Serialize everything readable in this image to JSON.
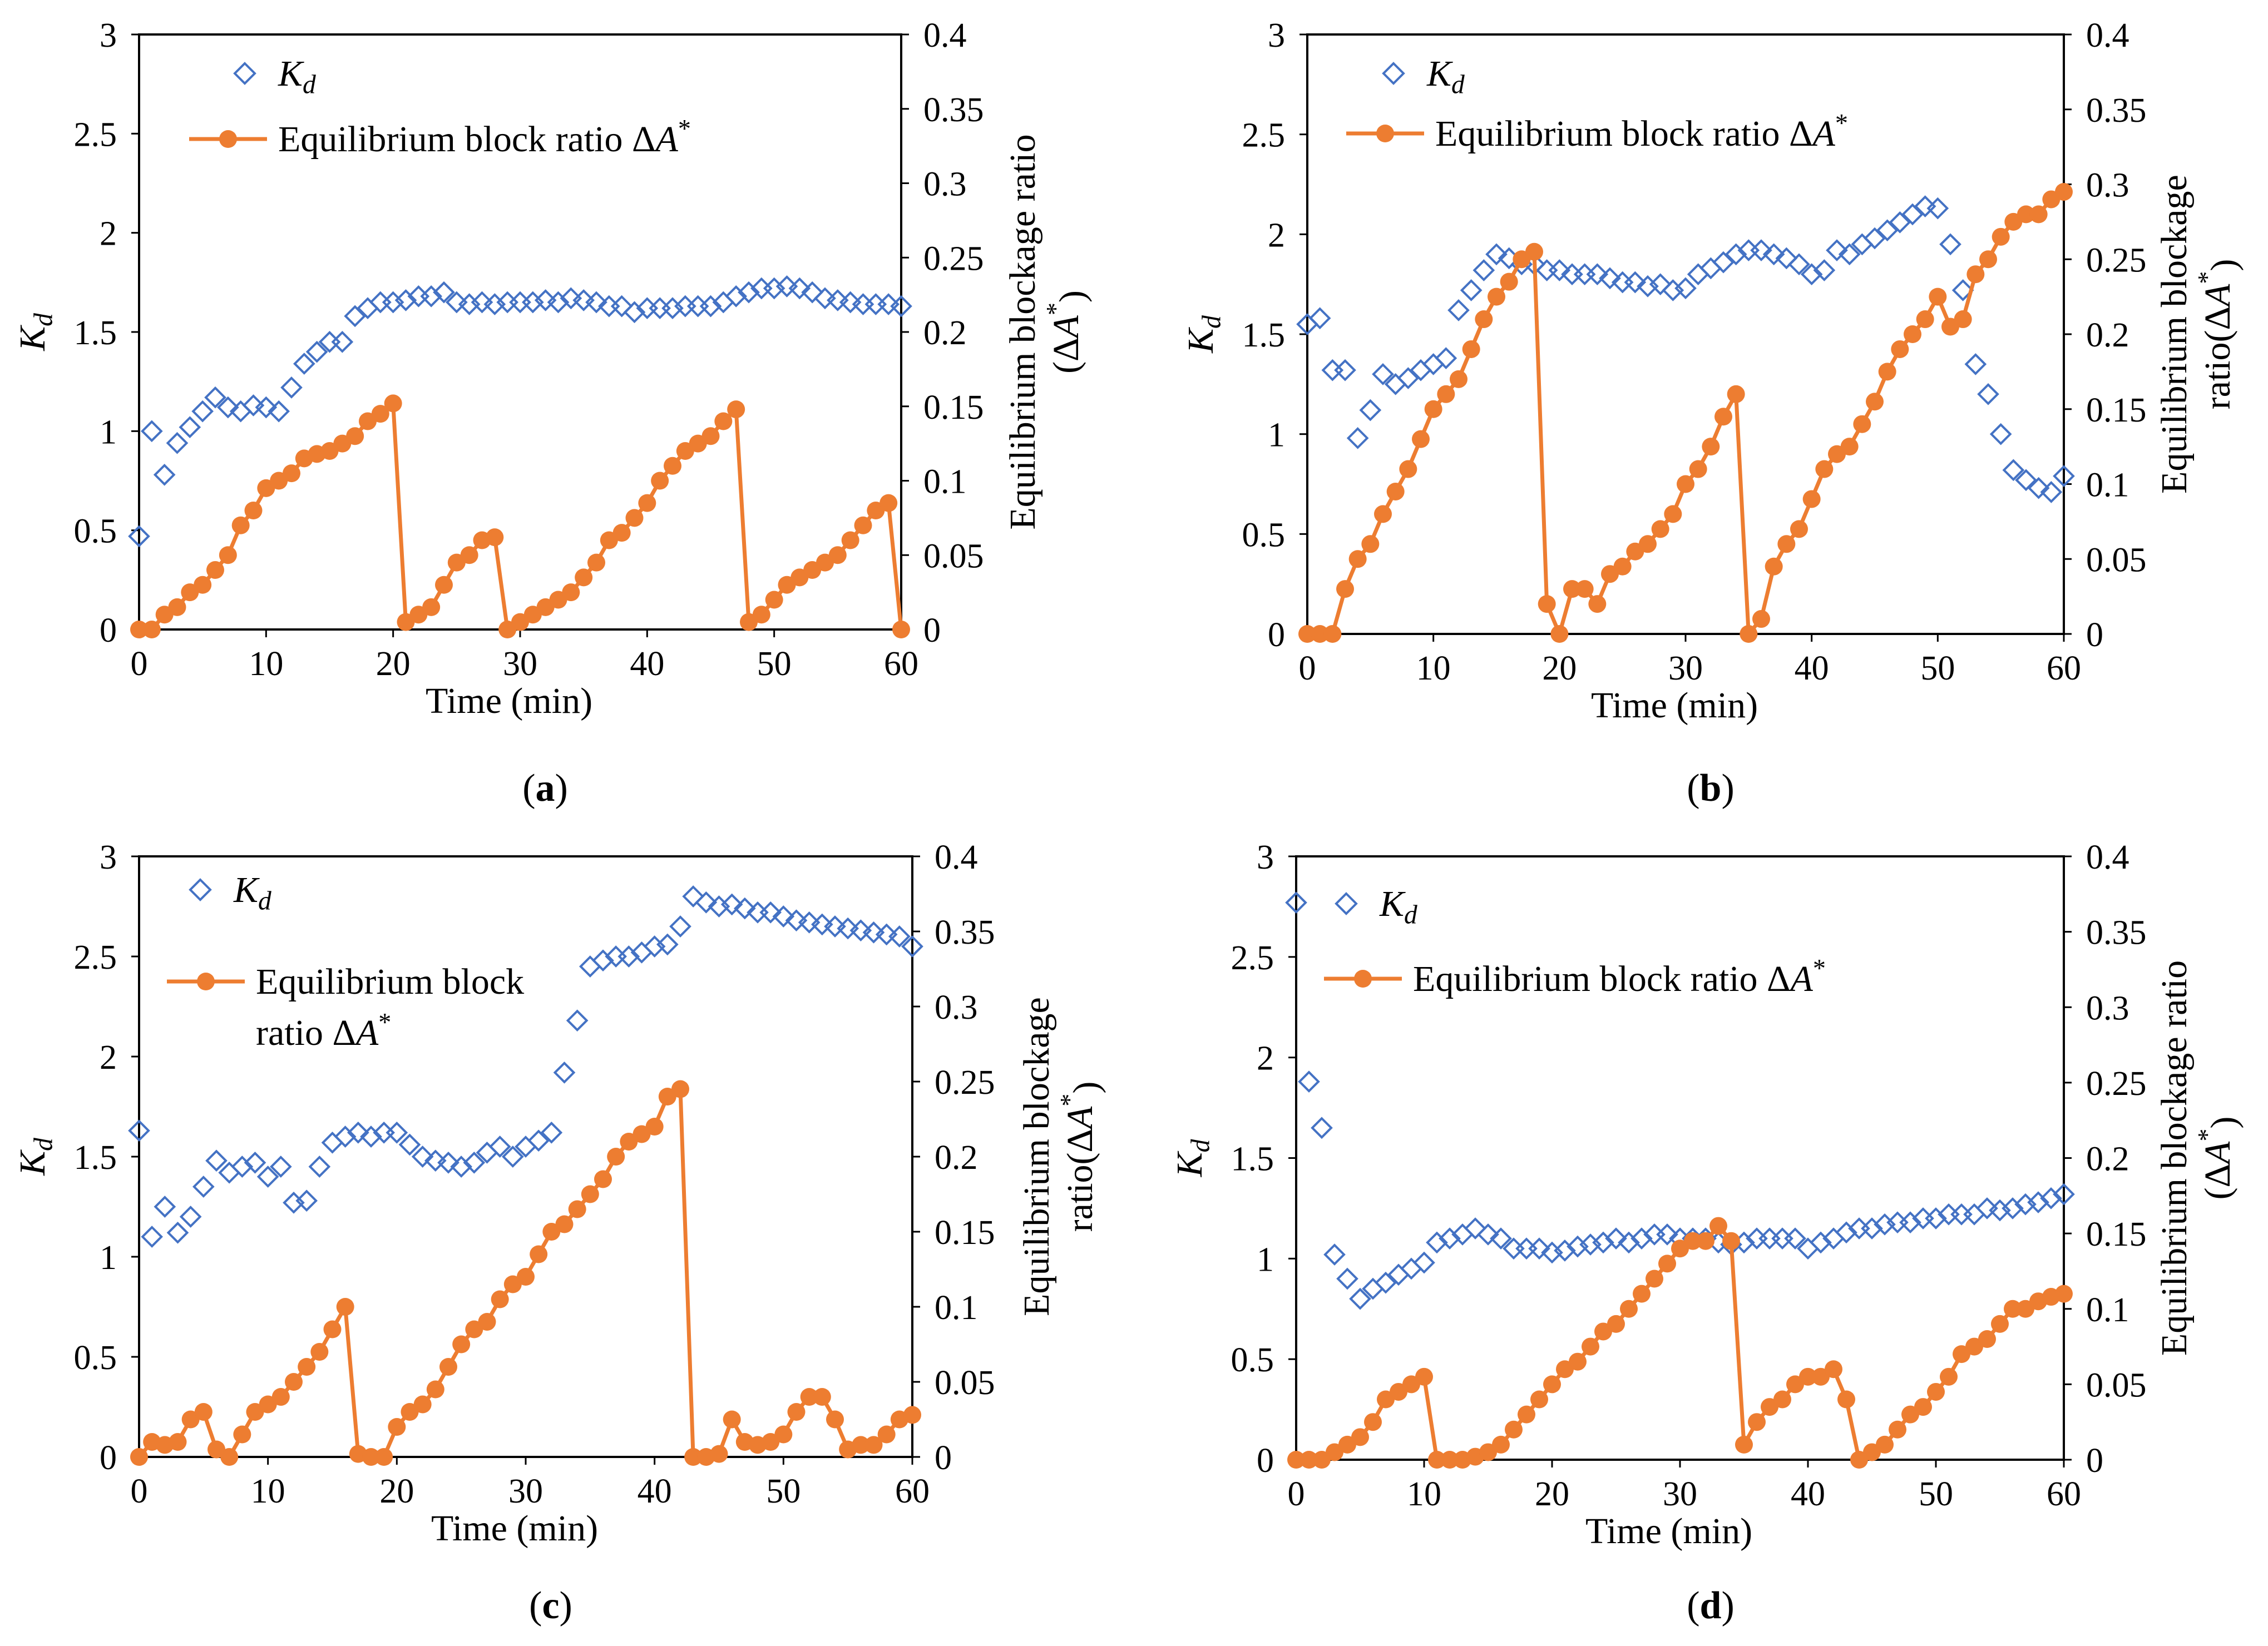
{
  "figure": {
    "colors": {
      "kd": "#4472C4",
      "block": "#ED7D31",
      "axis": "#000000"
    }
  },
  "chart_data": [
    {
      "panel": "a",
      "type": "scatter+line",
      "caption_letter": "a",
      "xlabel": "Time (min)",
      "ylabel_left": "Kd",
      "ylabel_right": [
        "Equilibrium blockage ratio",
        "(ΔA*)"
      ],
      "legend": {
        "kd": "Kd",
        "block": [
          "Equilibrium block ratio ΔA*"
        ]
      },
      "xlim": [
        0,
        60
      ],
      "x_ticks": [
        0,
        10,
        20,
        30,
        40,
        50,
        60
      ],
      "ylim_left": [
        0,
        3
      ],
      "y_left_ticks": [
        0,
        0.5,
        1,
        1.5,
        2,
        2.5,
        3
      ],
      "ylim_right": [
        0,
        0.4
      ],
      "y_right_ticks": [
        0,
        0.05,
        0.1,
        0.15,
        0.2,
        0.25,
        0.3,
        0.35,
        0.4
      ],
      "kd": [
        0.47,
        1.0,
        0.78,
        0.94,
        1.02,
        1.1,
        1.17,
        1.12,
        1.1,
        1.13,
        1.12,
        1.1,
        1.22,
        1.34,
        1.4,
        1.45,
        1.45,
        1.58,
        1.62,
        1.65,
        1.65,
        1.66,
        1.68,
        1.68,
        1.7,
        1.65,
        1.64,
        1.65,
        1.64,
        1.65,
        1.65,
        1.65,
        1.66,
        1.65,
        1.67,
        1.66,
        1.65,
        1.63,
        1.63,
        1.6,
        1.62,
        1.62,
        1.62,
        1.63,
        1.63,
        1.63,
        1.65,
        1.68,
        1.7,
        1.72,
        1.72,
        1.73,
        1.72,
        1.7,
        1.67,
        1.66,
        1.65,
        1.64,
        1.64,
        1.64,
        1.63
      ],
      "block": [
        0,
        0,
        0.01,
        0.015,
        0.025,
        0.03,
        0.04,
        0.05,
        0.07,
        0.08,
        0.095,
        0.1,
        0.105,
        0.115,
        0.118,
        0.12,
        0.125,
        0.13,
        0.14,
        0.145,
        0.152,
        0.005,
        0.01,
        0.015,
        0.03,
        0.045,
        0.05,
        0.06,
        0.062,
        0,
        0.005,
        0.01,
        0.015,
        0.02,
        0.025,
        0.035,
        0.045,
        0.06,
        0.065,
        0.075,
        0.085,
        0.1,
        0.11,
        0.12,
        0.125,
        0.13,
        0.14,
        0.148,
        0.005,
        0.01,
        0.02,
        0.03,
        0.035,
        0.04,
        0.045,
        0.05,
        0.06,
        0.07,
        0.08,
        0.085,
        0
      ]
    },
    {
      "panel": "b",
      "type": "scatter+line",
      "caption_letter": "b",
      "xlabel": "Time (min)",
      "ylabel_left": "Kd",
      "ylabel_right": [
        "Equilibrium blockage",
        "ratio(ΔA*)"
      ],
      "legend": {
        "kd": "Kd",
        "block": [
          "Equilibrium block ratio ΔA*"
        ]
      },
      "xlim": [
        0,
        60
      ],
      "x_ticks": [
        0,
        10,
        20,
        30,
        40,
        50,
        60
      ],
      "ylim_left": [
        0,
        3
      ],
      "y_left_ticks": [
        0,
        0.5,
        1,
        1.5,
        2,
        2.5,
        3
      ],
      "ylim_right": [
        0,
        0.4
      ],
      "y_right_ticks": [
        0,
        0.05,
        0.1,
        0.15,
        0.2,
        0.25,
        0.3,
        0.35,
        0.4
      ],
      "kd": [
        1.55,
        1.58,
        1.32,
        1.32,
        0.98,
        1.12,
        1.3,
        1.25,
        1.28,
        1.32,
        1.35,
        1.38,
        1.62,
        1.72,
        1.82,
        1.9,
        1.88,
        1.85,
        1.85,
        1.82,
        1.82,
        1.8,
        1.8,
        1.8,
        1.78,
        1.76,
        1.76,
        1.74,
        1.75,
        1.72,
        1.73,
        1.8,
        1.83,
        1.86,
        1.9,
        1.92,
        1.92,
        1.9,
        1.88,
        1.85,
        1.8,
        1.82,
        1.92,
        1.9,
        1.95,
        1.98,
        2.02,
        2.06,
        2.1,
        2.14,
        2.13,
        1.95,
        1.72,
        1.35,
        1.2,
        1.0,
        0.82,
        0.77,
        0.73,
        0.71,
        0.79
      ],
      "block": [
        0,
        0,
        0,
        0.03,
        0.05,
        0.06,
        0.08,
        0.095,
        0.11,
        0.13,
        0.15,
        0.16,
        0.17,
        0.19,
        0.21,
        0.225,
        0.235,
        0.25,
        0.255,
        0.02,
        0,
        0.03,
        0.03,
        0.02,
        0.04,
        0.045,
        0.055,
        0.06,
        0.07,
        0.08,
        0.1,
        0.11,
        0.125,
        0.145,
        0.16,
        0,
        0.01,
        0.045,
        0.06,
        0.07,
        0.09,
        0.11,
        0.12,
        0.125,
        0.14,
        0.155,
        0.175,
        0.19,
        0.2,
        0.21,
        0.225,
        0.205,
        0.21,
        0.24,
        0.25,
        0.265,
        0.275,
        0.28,
        0.28,
        0.29,
        0.295
      ]
    },
    {
      "panel": "c",
      "type": "scatter+line",
      "caption_letter": "c",
      "xlabel": "Time (min)",
      "ylabel_left": "Kd",
      "ylabel_right": [
        "Equilibrium blockage",
        "ratio(ΔA*)"
      ],
      "legend": {
        "kd": "Kd",
        "block": [
          "Equilibrium block",
          "ratio ΔA*"
        ]
      },
      "xlim": [
        0,
        60
      ],
      "x_ticks": [
        0,
        10,
        20,
        30,
        40,
        50,
        60
      ],
      "ylim_left": [
        0,
        3
      ],
      "y_left_ticks": [
        0,
        0.5,
        1,
        1.5,
        2,
        2.5,
        3
      ],
      "ylim_right": [
        0,
        0.4
      ],
      "y_right_ticks": [
        0,
        0.05,
        0.1,
        0.15,
        0.2,
        0.25,
        0.3,
        0.35,
        0.4
      ],
      "kd": [
        1.63,
        1.1,
        1.25,
        1.12,
        1.2,
        1.35,
        1.48,
        1.42,
        1.45,
        1.47,
        1.4,
        1.45,
        1.27,
        1.28,
        1.45,
        1.57,
        1.6,
        1.62,
        1.6,
        1.62,
        1.62,
        1.56,
        1.5,
        1.48,
        1.47,
        1.45,
        1.47,
        1.52,
        1.55,
        1.5,
        1.55,
        1.58,
        1.62,
        1.92,
        2.18,
        2.45,
        2.48,
        2.5,
        2.5,
        2.52,
        2.55,
        2.56,
        2.65,
        2.8,
        2.77,
        2.75,
        2.76,
        2.74,
        2.72,
        2.72,
        2.7,
        2.68,
        2.67,
        2.66,
        2.65,
        2.64,
        2.63,
        2.62,
        2.61,
        2.6,
        2.55
      ],
      "block": [
        0,
        0.01,
        0.008,
        0.01,
        0.025,
        0.03,
        0.005,
        0,
        0.015,
        0.03,
        0.035,
        0.04,
        0.05,
        0.06,
        0.07,
        0.085,
        0.1,
        0.002,
        0,
        0,
        0.02,
        0.03,
        0.035,
        0.045,
        0.06,
        0.075,
        0.085,
        0.09,
        0.105,
        0.115,
        0.12,
        0.135,
        0.15,
        0.155,
        0.165,
        0.175,
        0.185,
        0.2,
        0.21,
        0.215,
        0.22,
        0.24,
        0.245,
        0,
        0,
        0.002,
        0.025,
        0.01,
        0.008,
        0.01,
        0.015,
        0.03,
        0.04,
        0.04,
        0.025,
        0.005,
        0.008,
        0.008,
        0.015,
        0.025,
        0.028
      ]
    },
    {
      "panel": "d",
      "type": "scatter+line",
      "caption_letter": "d",
      "xlabel": "Time (min)",
      "ylabel_left": "Kd",
      "ylabel_right": [
        "Equilibrium blockage ratio",
        "(ΔA*)"
      ],
      "legend": {
        "kd": "Kd",
        "block": [
          "Equilibrium block ratio ΔA*"
        ]
      },
      "xlim": [
        0,
        60
      ],
      "x_ticks": [
        0,
        10,
        20,
        30,
        40,
        50,
        60
      ],
      "ylim_left": [
        0,
        3
      ],
      "y_left_ticks": [
        0,
        0.5,
        1,
        1.5,
        2,
        2.5,
        3
      ],
      "ylim_right": [
        0,
        0.4
      ],
      "y_right_ticks": [
        0,
        0.05,
        0.1,
        0.15,
        0.2,
        0.25,
        0.3,
        0.35,
        0.4
      ],
      "kd": [
        2.77,
        1.88,
        1.65,
        1.02,
        0.9,
        0.8,
        0.85,
        0.88,
        0.92,
        0.95,
        0.98,
        1.08,
        1.1,
        1.12,
        1.15,
        1.12,
        1.1,
        1.05,
        1.05,
        1.05,
        1.03,
        1.04,
        1.06,
        1.07,
        1.08,
        1.1,
        1.08,
        1.1,
        1.12,
        1.12,
        1.1,
        1.1,
        1.1,
        1.08,
        1.07,
        1.08,
        1.1,
        1.1,
        1.1,
        1.1,
        1.05,
        1.08,
        1.1,
        1.13,
        1.15,
        1.15,
        1.17,
        1.18,
        1.18,
        1.2,
        1.2,
        1.22,
        1.22,
        1.22,
        1.25,
        1.24,
        1.25,
        1.27,
        1.28,
        1.3,
        1.32
      ],
      "block": [
        0,
        0,
        0,
        0.005,
        0.01,
        0.015,
        0.025,
        0.04,
        0.045,
        0.05,
        0.055,
        0,
        0,
        0,
        0.002,
        0.005,
        0.01,
        0.02,
        0.03,
        0.04,
        0.05,
        0.06,
        0.065,
        0.075,
        0.085,
        0.09,
        0.1,
        0.11,
        0.12,
        0.13,
        0.14,
        0.145,
        0.145,
        0.155,
        0.145,
        0.01,
        0.025,
        0.035,
        0.04,
        0.05,
        0.055,
        0.055,
        0.06,
        0.04,
        0,
        0.005,
        0.01,
        0.02,
        0.03,
        0.035,
        0.045,
        0.055,
        0.07,
        0.075,
        0.08,
        0.09,
        0.1,
        0.1,
        0.105,
        0.108,
        0.11
      ]
    }
  ]
}
